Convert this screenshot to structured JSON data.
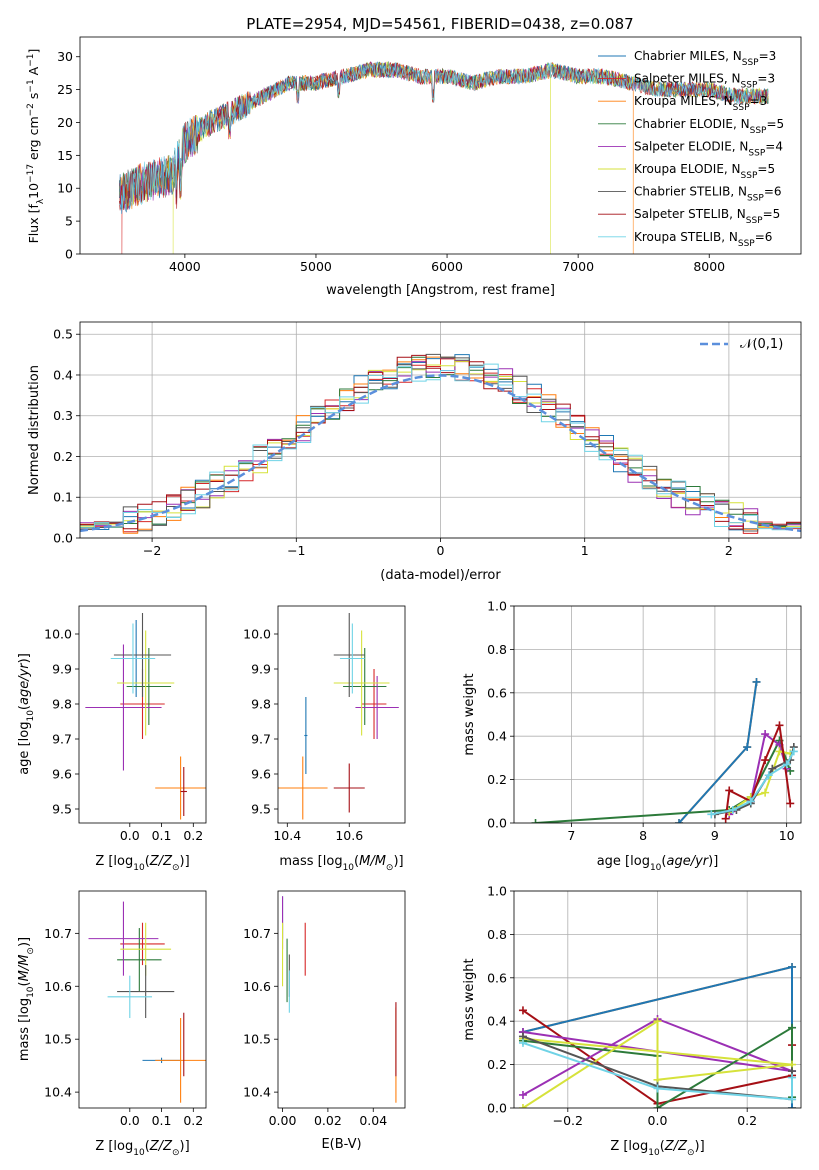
{
  "figure_title": "PLATE=2954, MJD=54561, FIBERID=0438, z=0.087",
  "models": [
    {
      "name": "Chabrier MILES",
      "color": "#1f77b4"
    },
    {
      "name": "Salpeter MILES",
      "color": "#d62728"
    },
    {
      "name": "Kroupa MILES",
      "color": "#ff7f0e"
    },
    {
      "name": "Chabrier ELODIE",
      "color": "#2c7a3a"
    },
    {
      "name": "Salpeter ELODIE",
      "color": "#9b30b4"
    },
    {
      "name": "Kroupa ELODIE",
      "color": "#d6e23b"
    },
    {
      "name": "Chabrier STELIB",
      "color": "#555555"
    },
    {
      "name": "Salpeter STELIB",
      "color": "#a50f15"
    },
    {
      "name": "Kroupa STELIB",
      "color": "#6fd3e6"
    }
  ],
  "chart_data": [
    {
      "type": "line",
      "panel": "spectrum",
      "xlabel": "wavelength [Angstrom, rest frame]",
      "ylabel": "Flux [f_λ 10^-17 erg cm^-2 s^-1 A^-1]",
      "xlim": [
        3200,
        8700
      ],
      "ylim": [
        0,
        33
      ],
      "xticks": [
        4000,
        5000,
        6000,
        7000,
        8000
      ],
      "yticks": [
        0,
        5,
        10,
        15,
        20,
        25,
        30
      ],
      "legend_position": "upper right",
      "legend": [
        {
          "label": "Chabrier MILES",
          "n_ssp": "3"
        },
        {
          "label": "Salpeter MILES",
          "n_ssp": "3"
        },
        {
          "label": "Kroupa MILES",
          "n_ssp": "3"
        },
        {
          "label": "Chabrier ELODIE",
          "n_ssp": "5"
        },
        {
          "label": "Salpeter ELODIE",
          "n_ssp": "4"
        },
        {
          "label": "Kroupa ELODIE",
          "n_ssp": "5"
        },
        {
          "label": "Chabrier STELIB",
          "n_ssp": "6"
        },
        {
          "label": "Salpeter STELIB",
          "n_ssp": "5"
        },
        {
          "label": "Kroupa STELIB",
          "n_ssp": "6"
        }
      ],
      "continuum": [
        [
          3500,
          9
        ],
        [
          3700,
          11
        ],
        [
          3900,
          12
        ],
        [
          4000,
          17
        ],
        [
          4200,
          20
        ],
        [
          4400,
          22
        ],
        [
          4600,
          24
        ],
        [
          4800,
          26
        ],
        [
          5000,
          26
        ],
        [
          5200,
          27
        ],
        [
          5400,
          28
        ],
        [
          5600,
          28
        ],
        [
          5800,
          27
        ],
        [
          6000,
          27
        ],
        [
          6200,
          26
        ],
        [
          6400,
          27
        ],
        [
          6600,
          27
        ],
        [
          6800,
          28
        ],
        [
          7000,
          27
        ],
        [
          7200,
          27
        ],
        [
          7400,
          26
        ],
        [
          7600,
          25
        ],
        [
          7800,
          25
        ],
        [
          8000,
          25
        ],
        [
          8200,
          24
        ],
        [
          8450,
          24
        ]
      ],
      "drop_features": [
        {
          "x": 3520,
          "series": "Salpeter MILES"
        },
        {
          "x": 3910,
          "series": "Kroupa ELODIE"
        },
        {
          "x": 6790,
          "series": "Kroupa ELODIE"
        },
        {
          "x": 7420,
          "series": "Kroupa MILES"
        }
      ]
    },
    {
      "type": "histogram",
      "panel": "residuals",
      "xlabel": "(data-model)/error",
      "ylabel": "Normed distribution",
      "xlim": [
        -2.5,
        2.5
      ],
      "ylim": [
        0,
        0.53
      ],
      "xticks": [
        -2,
        -1,
        0,
        1,
        2
      ],
      "yticks": [
        0.0,
        0.1,
        0.2,
        0.3,
        0.4,
        0.5
      ],
      "grid": true,
      "bin_width": 0.1,
      "reference_curve": {
        "label": "𝒩(0,1)",
        "mean": 0,
        "sigma": 1,
        "color": "#5b8fdc",
        "style": "dashed"
      },
      "legend_position": "upper right"
    },
    {
      "type": "errorbar",
      "panel": "age_vs_Z",
      "xlabel": "Z [log10(Z/Z⊙)]",
      "ylabel": "age  [log10(age/yr)]",
      "xlim": [
        -0.16,
        0.24
      ],
      "ylim": [
        9.46,
        10.08
      ],
      "xticks": [
        0.0,
        0.1,
        0.2
      ],
      "yticks": [
        9.5,
        9.6,
        9.7,
        9.8,
        9.9,
        10.0
      ],
      "points": [
        {
          "model": "Chabrier MILES",
          "x": 0.02,
          "xerr": 0.04,
          "y": 9.93,
          "yerr": 0.11
        },
        {
          "model": "Salpeter MILES",
          "x": 0.04,
          "xerr": 0.07,
          "y": 9.8,
          "yerr": 0.1
        },
        {
          "model": "Kroupa MILES",
          "x": 0.16,
          "xerr": 0.08,
          "y": 9.56,
          "yerr": 0.09
        },
        {
          "model": "Chabrier ELODIE",
          "x": 0.06,
          "xerr": 0.07,
          "y": 9.85,
          "yerr": 0.11
        },
        {
          "model": "Salpeter ELODIE",
          "x": -0.02,
          "xerr": 0.12,
          "y": 9.79,
          "yerr": 0.18
        },
        {
          "model": "Kroupa ELODIE",
          "x": 0.05,
          "xerr": 0.09,
          "y": 9.86,
          "yerr": 0.15
        },
        {
          "model": "Chabrier STELIB",
          "x": 0.04,
          "xerr": 0.09,
          "y": 9.94,
          "yerr": 0.12
        },
        {
          "model": "Salpeter STELIB",
          "x": 0.17,
          "xerr": 0.01,
          "y": 9.55,
          "yerr": 0.07
        },
        {
          "model": "Kroupa STELIB",
          "x": 0.01,
          "xerr": 0.07,
          "y": 9.93,
          "yerr": 0.1
        }
      ]
    },
    {
      "type": "errorbar",
      "panel": "age_vs_mass",
      "xlabel": "mass [log10(M/M⊙)]",
      "xlim": [
        10.37,
        10.78
      ],
      "ylim": [
        9.46,
        10.08
      ],
      "xticks": [
        10.4,
        10.6
      ],
      "yticks": [
        9.5,
        9.6,
        9.7,
        9.8,
        9.9,
        10.0
      ],
      "points": [
        {
          "model": "Chabrier MILES",
          "x": 10.46,
          "xerr": 0.005,
          "y": 9.71,
          "yerr": 0.11
        },
        {
          "model": "Salpeter MILES",
          "x": 10.68,
          "xerr": 0.04,
          "y": 9.8,
          "yerr": 0.1
        },
        {
          "model": "Kroupa MILES",
          "x": 10.45,
          "xerr": 0.08,
          "y": 9.56,
          "yerr": 0.09
        },
        {
          "model": "Chabrier ELODIE",
          "x": 10.65,
          "xerr": 0.07,
          "y": 9.85,
          "yerr": 0.11
        },
        {
          "model": "Salpeter ELODIE",
          "x": 10.69,
          "xerr": 0.07,
          "y": 9.79,
          "yerr": 0.09
        },
        {
          "model": "Kroupa ELODIE",
          "x": 10.64,
          "xerr": 0.09,
          "y": 9.86,
          "yerr": 0.15
        },
        {
          "model": "Chabrier STELIB",
          "x": 10.6,
          "xerr": 0.05,
          "y": 9.94,
          "yerr": 0.12
        },
        {
          "model": "Salpeter STELIB",
          "x": 10.6,
          "xerr": 0.05,
          "y": 9.56,
          "yerr": 0.07
        },
        {
          "model": "Kroupa STELIB",
          "x": 10.61,
          "xerr": 0.04,
          "y": 9.93,
          "yerr": 0.1
        }
      ]
    },
    {
      "type": "line",
      "panel": "weights_vs_age",
      "xlabel": "age  [log10(age/yr)]",
      "ylabel": "mass weight",
      "xlim": [
        6.2,
        10.2
      ],
      "ylim": [
        0,
        1.0
      ],
      "xticks": [
        7,
        8,
        9,
        10
      ],
      "yticks": [
        0.0,
        0.2,
        0.4,
        0.6,
        0.8,
        1.0
      ],
      "grid": true,
      "series": [
        {
          "name": "Kroupa MILES",
          "x": [
            8.5,
            9.45,
            9.58
          ],
          "y": [
            0.0,
            0.35,
            0.65
          ]
        },
        {
          "name": "Chabrier MILES",
          "x": [
            8.5,
            9.45,
            9.58
          ],
          "y": [
            0.0,
            0.35,
            0.65
          ]
        },
        {
          "name": "Chabrier ELODIE",
          "x": [
            6.5,
            9.2,
            9.5,
            9.9,
            10.05
          ],
          "y": [
            0.0,
            0.06,
            0.12,
            0.38,
            0.24
          ]
        },
        {
          "name": "Salpeter ELODIE",
          "x": [
            9.2,
            9.5,
            9.7,
            9.9,
            10.0
          ],
          "y": [
            0.04,
            0.1,
            0.41,
            0.36,
            0.25
          ]
        },
        {
          "name": "Kroupa ELODIE",
          "x": [
            9.2,
            9.5,
            9.7,
            9.9,
            10.05
          ],
          "y": [
            0.05,
            0.12,
            0.14,
            0.33,
            0.32
          ]
        },
        {
          "name": "Salpeter STELIB",
          "x": [
            9.15,
            9.2,
            9.5,
            9.7,
            9.9,
            10.05
          ],
          "y": [
            0.02,
            0.15,
            0.1,
            0.29,
            0.45,
            0.09
          ]
        },
        {
          "name": "Chabrier STELIB",
          "x": [
            9.0,
            9.3,
            9.5,
            9.8,
            10.05,
            10.1
          ],
          "y": [
            0.04,
            0.06,
            0.09,
            0.25,
            0.29,
            0.35
          ]
        },
        {
          "name": "Kroupa STELIB",
          "x": [
            8.95,
            9.25,
            9.5,
            9.75,
            10.0,
            10.1
          ],
          "y": [
            0.04,
            0.06,
            0.1,
            0.22,
            0.27,
            0.33
          ]
        }
      ]
    },
    {
      "type": "errorbar",
      "panel": "mass_vs_Z",
      "xlabel": "Z [log10(Z/Z⊙)]",
      "ylabel": "mass [log10(M/M⊙)]",
      "xlim": [
        -0.16,
        0.24
      ],
      "ylim": [
        10.37,
        10.78
      ],
      "xticks": [
        0.0,
        0.1,
        0.2
      ],
      "yticks": [
        10.4,
        10.5,
        10.6,
        10.7
      ],
      "points": [
        {
          "model": "Chabrier MILES",
          "x": 0.1,
          "xerr": 0.06,
          "y": 10.46,
          "yerr": 0.005
        },
        {
          "model": "Salpeter MILES",
          "x": 0.04,
          "xerr": 0.07,
          "y": 10.68,
          "yerr": 0.04
        },
        {
          "model": "Kroupa MILES",
          "x": 0.16,
          "xerr": 0.08,
          "y": 10.46,
          "yerr": 0.08
        },
        {
          "model": "Chabrier ELODIE",
          "x": 0.03,
          "xerr": 0.07,
          "y": 10.65,
          "yerr": 0.06
        },
        {
          "model": "Salpeter ELODIE",
          "x": -0.02,
          "xerr": 0.11,
          "y": 10.69,
          "yerr": 0.07
        },
        {
          "model": "Kroupa ELODIE",
          "x": 0.05,
          "xerr": 0.08,
          "y": 10.67,
          "yerr": 0.05
        },
        {
          "model": "Chabrier STELIB",
          "x": 0.05,
          "xerr": 0.09,
          "y": 10.59,
          "yerr": 0.05
        },
        {
          "model": "Salpeter STELIB",
          "x": 0.17,
          "xerr": 0.0,
          "y": 10.49,
          "yerr": 0.06
        },
        {
          "model": "Kroupa STELIB",
          "x": 0.0,
          "xerr": 0.07,
          "y": 10.58,
          "yerr": 0.04
        }
      ]
    },
    {
      "type": "errorbar",
      "panel": "mass_vs_EBV",
      "xlabel": "E(B-V)",
      "xlim": [
        -0.002,
        0.054
      ],
      "ylim": [
        10.37,
        10.78
      ],
      "xticks": [
        0.0,
        0.02,
        0.04
      ],
      "yticks": [
        10.4,
        10.5,
        10.6,
        10.7
      ],
      "points": [
        {
          "model": "Chabrier MILES",
          "x": 0.0,
          "y": 10.73,
          "yerr": 0.04
        },
        {
          "model": "Salpeter MILES",
          "x": 0.01,
          "y": 10.67,
          "yerr": 0.05
        },
        {
          "model": "Kroupa MILES",
          "x": 0.05,
          "y": 10.47,
          "yerr": 0.09
        },
        {
          "model": "Chabrier ELODIE",
          "x": 0.002,
          "y": 10.63,
          "yerr": 0.06
        },
        {
          "model": "Salpeter ELODIE",
          "x": 0.0,
          "y": 10.72,
          "yerr": 0.05
        },
        {
          "model": "Kroupa ELODIE",
          "x": 0.0,
          "y": 10.66,
          "yerr": 0.06
        },
        {
          "model": "Chabrier STELIB",
          "x": 0.003,
          "y": 10.62,
          "yerr": 0.04
        },
        {
          "model": "Salpeter STELIB",
          "x": 0.05,
          "y": 10.5,
          "yerr": 0.07
        },
        {
          "model": "Kroupa STELIB",
          "x": 0.003,
          "y": 10.59,
          "yerr": 0.04
        }
      ]
    },
    {
      "type": "line",
      "panel": "weights_vs_Z",
      "xlabel": "Z [log10(Z/Z⊙)]",
      "ylabel": "mass weight",
      "xlim": [
        -0.32,
        0.32
      ],
      "ylim": [
        0,
        1.0
      ],
      "xticks": [
        -0.2,
        0.0,
        0.2
      ],
      "yticks": [
        0.0,
        0.2,
        0.4,
        0.6,
        0.8,
        1.0
      ],
      "grid": true,
      "series": [
        {
          "name": "Kroupa MILES",
          "x": [
            -0.3,
            0.3,
            0.3
          ],
          "y": [
            0.35,
            0.65,
            0.0
          ]
        },
        {
          "name": "Chabrier MILES",
          "x": [
            -0.3,
            0.3,
            0.3
          ],
          "y": [
            0.35,
            0.65,
            0.0
          ]
        },
        {
          "name": "Salpeter STELIB",
          "x": [
            -0.3,
            0.0,
            0.3,
            0.3
          ],
          "y": [
            0.45,
            0.02,
            0.15,
            0.29
          ]
        },
        {
          "name": "Salpeter ELODIE",
          "x": [
            -0.3,
            0.0,
            0.3,
            -0.3
          ],
          "y": [
            0.06,
            0.41,
            0.17,
            0.35
          ]
        },
        {
          "name": "Chabrier ELODIE",
          "x": [
            -0.3,
            0.0,
            0.0,
            0.3,
            0.3
          ],
          "y": [
            0.31,
            0.24,
            0.0,
            0.37,
            0.05
          ]
        },
        {
          "name": "Kroupa ELODIE",
          "x": [
            -0.3,
            0.0,
            0.0,
            0.3,
            -0.3
          ],
          "y": [
            0.0,
            0.4,
            0.13,
            0.2,
            0.32
          ]
        },
        {
          "name": "Chabrier STELIB",
          "x": [
            -0.3,
            0.0,
            0.3,
            0.3
          ],
          "y": [
            0.33,
            0.1,
            0.04,
            0.17
          ]
        },
        {
          "name": "Kroupa STELIB",
          "x": [
            -0.3,
            0.0,
            0.3,
            0.3
          ],
          "y": [
            0.3,
            0.09,
            0.04,
            0.14
          ]
        }
      ]
    }
  ]
}
